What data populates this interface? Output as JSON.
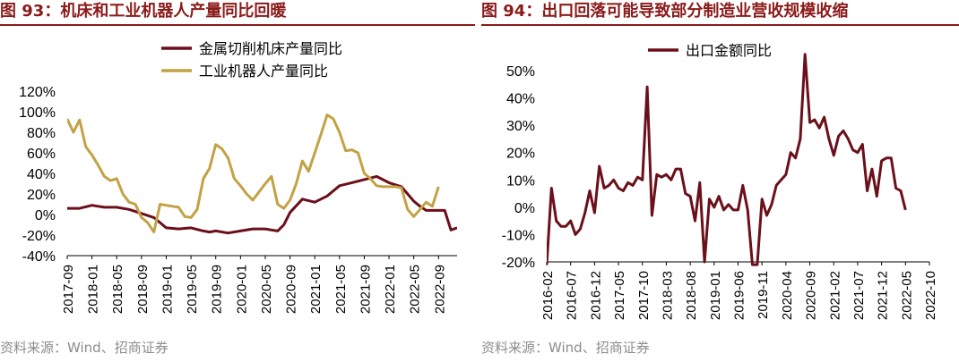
{
  "chart_data": [
    {
      "type": "line",
      "figure_label": "图 93：",
      "title": "机床和工业机器人产量同比回暖",
      "ylim": [
        -40,
        120
      ],
      "yticks": [
        -40,
        -20,
        0,
        20,
        40,
        60,
        80,
        100,
        120
      ],
      "y_tick_labels": [
        "-40%",
        "-20%",
        "0%",
        "20%",
        "40%",
        "60%",
        "80%",
        "100%",
        "120%"
      ],
      "xlim": [
        0,
        63
      ],
      "x_tick_positions": [
        0,
        4,
        8,
        12,
        16,
        20,
        24,
        28,
        32,
        36,
        40,
        44,
        48,
        52,
        56,
        60
      ],
      "x_tick_labels": [
        "2017-09",
        "2018-01",
        "2018-05",
        "2018-09",
        "2019-01",
        "2019-05",
        "2019-09",
        "2020-01",
        "2020-05",
        "2020-09",
        "2021-01",
        "2021-05",
        "2021-09",
        "2022-01",
        "2022-05",
        "2022-09"
      ],
      "legend_position": "top-center",
      "series": [
        {
          "name": "金属切削机床产量同比",
          "color": "#6b0f1a",
          "x": [
            0,
            2,
            4,
            6,
            8,
            10,
            12,
            14,
            16,
            18,
            20,
            22,
            23,
            24,
            26,
            28,
            30,
            32,
            33,
            34,
            35,
            36,
            38,
            40,
            42,
            44,
            46,
            48,
            50,
            52,
            54,
            56,
            57,
            58,
            60,
            61,
            62,
            63
          ],
          "y": [
            6,
            6,
            9,
            7,
            7,
            5,
            1,
            -3,
            -13,
            -14,
            -13,
            -16,
            -17,
            -16,
            -18,
            -16,
            -14,
            -14,
            -15,
            -16,
            -10,
            2,
            15,
            12,
            18,
            28,
            31,
            34,
            37,
            31,
            27,
            13,
            8,
            4,
            4,
            4,
            -15,
            -13
          ]
        },
        {
          "name": "工业机器人产量同比",
          "color": "#c2a245",
          "x": [
            0,
            1,
            2,
            3,
            4,
            5,
            6,
            7,
            8,
            9,
            10,
            11,
            12,
            13,
            14,
            15,
            16,
            17,
            18,
            19,
            20,
            21,
            22,
            23,
            24,
            25,
            26,
            27,
            28,
            29,
            30,
            31,
            32,
            33,
            34,
            35,
            36,
            37,
            38,
            39,
            40,
            41,
            42,
            43,
            44,
            45,
            46,
            47,
            48,
            49,
            50,
            51,
            52,
            53,
            54,
            55,
            56,
            57,
            58,
            59,
            60,
            61,
            62,
            63
          ],
          "y": [
            93,
            80,
            92,
            66,
            58,
            48,
            37,
            33,
            35,
            20,
            12,
            10,
            -3,
            -8,
            -17,
            10,
            9,
            8,
            7,
            -2,
            -3,
            5,
            35,
            45,
            68,
            64,
            55,
            35,
            28,
            20,
            14,
            22,
            30,
            37,
            10,
            6,
            14,
            30,
            52,
            42,
            60,
            78,
            97,
            93,
            80,
            62,
            63,
            60,
            40,
            35,
            28,
            27,
            27,
            27,
            26,
            5,
            -2,
            5,
            12,
            8,
            27,
            null,
            null,
            null
          ]
        }
      ],
      "source": "资料来源：Wind、招商证券"
    },
    {
      "type": "line",
      "figure_label": "图 94：",
      "title": "出口回落可能导致部分制造业营收规模收缩",
      "ylim": [
        -20,
        50
      ],
      "yticks": [
        -20,
        -10,
        0,
        10,
        20,
        30,
        40,
        50
      ],
      "y_tick_labels": [
        "-20%",
        "-10%",
        "0%",
        "10%",
        "20%",
        "30%",
        "40%",
        "50%"
      ],
      "xlim": [
        0,
        80
      ],
      "x_tick_positions": [
        0,
        5,
        10,
        15,
        20,
        25,
        30,
        35,
        40,
        45,
        50,
        55,
        60,
        65,
        70,
        75,
        80
      ],
      "x_tick_labels": [
        "2016-02",
        "2016-07",
        "2016-12",
        "2017-05",
        "2017-10",
        "2018-03",
        "2018-08",
        "2019-01",
        "2019-06",
        "2019-11",
        "2020-04",
        "2020-09",
        "2021-02",
        "2021-07",
        "2021-12",
        "2022-05",
        "2022-10"
      ],
      "legend_position": "top-center",
      "series": [
        {
          "name": "出口金额同比",
          "color": "#6b0f1a",
          "x": [
            0,
            1,
            2,
            3,
            4,
            5,
            6,
            7,
            8,
            9,
            10,
            11,
            12,
            13,
            14,
            15,
            16,
            17,
            18,
            19,
            20,
            21,
            22,
            23,
            24,
            25,
            26,
            27,
            28,
            29,
            30,
            31,
            32,
            33,
            34,
            35,
            36,
            37,
            38,
            39,
            40,
            41,
            42,
            43,
            44,
            45,
            46,
            47,
            48,
            49,
            50,
            51,
            52,
            53,
            54,
            55,
            56,
            57,
            58,
            59,
            60,
            61,
            62,
            63,
            64,
            65,
            66,
            67,
            68,
            69,
            70,
            71,
            72,
            73,
            74,
            75,
            76,
            77,
            78,
            79,
            80
          ],
          "y": [
            -21,
            7,
            -5,
            -7,
            -7,
            -5,
            -10,
            -8,
            -2,
            6,
            -2,
            15,
            7,
            8,
            10,
            7,
            6,
            9,
            8,
            11,
            10,
            44,
            -3,
            12,
            11,
            12,
            10,
            14,
            14,
            5,
            4,
            -5,
            9,
            -20,
            3,
            0,
            4,
            -1,
            1,
            -1,
            -1,
            8,
            -1,
            -21,
            -21,
            3,
            -3,
            1,
            8,
            10,
            12,
            20,
            18,
            25,
            56,
            31,
            32,
            29,
            33,
            25,
            19,
            26,
            28,
            25,
            21,
            20,
            23,
            6,
            14,
            4,
            17,
            18,
            18,
            7,
            6,
            -1,
            null,
            null,
            null,
            null,
            null
          ]
        }
      ],
      "source": "资料来源：Wind、招商证券"
    }
  ]
}
